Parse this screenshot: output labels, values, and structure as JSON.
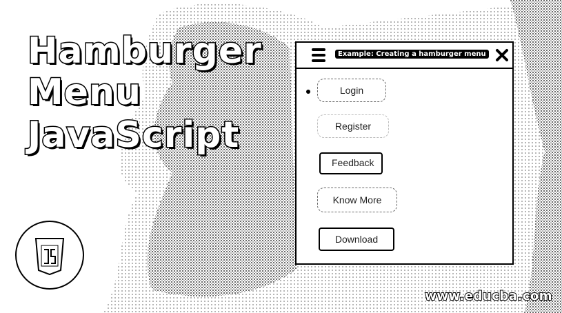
{
  "banner": {
    "title_lines": [
      "Hamburger",
      "Menu",
      "JavaScript"
    ],
    "url": "www.educba.com"
  },
  "window": {
    "title": "Example: Creating a hamburger menu",
    "hamburger_icon": "hamburger-icon",
    "close_icon": "close-icon"
  },
  "menu": {
    "items": [
      {
        "label": "Login"
      },
      {
        "label": "Register"
      },
      {
        "label": "Feedback"
      },
      {
        "label": "Know More"
      },
      {
        "label": "Download"
      }
    ]
  },
  "logo": {
    "icon": "html5-badge-icon"
  }
}
